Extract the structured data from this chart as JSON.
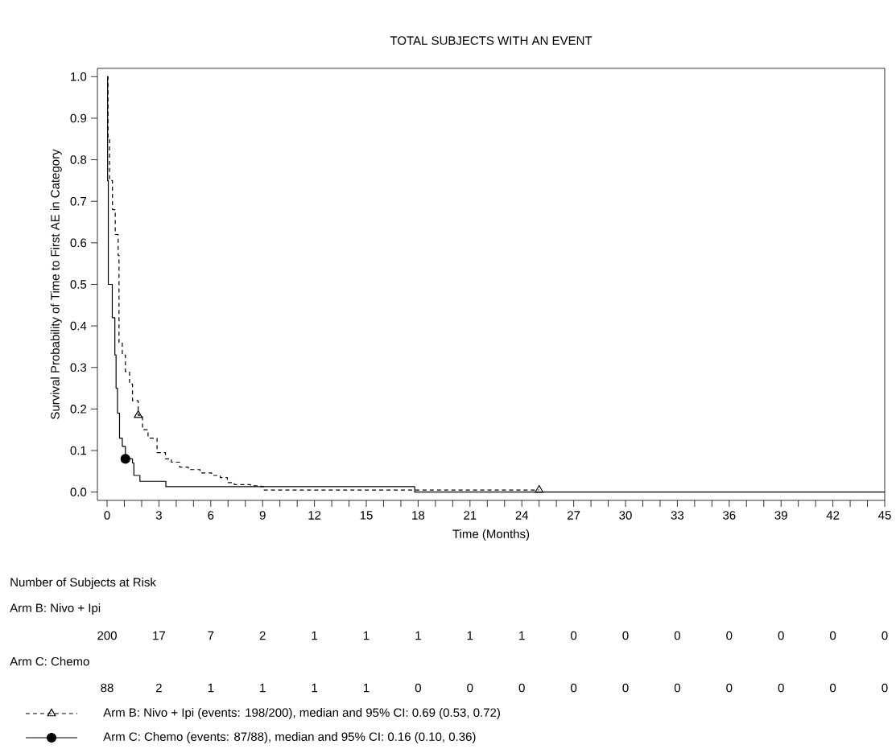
{
  "chart_data": {
    "type": "step",
    "title": "TOTAL SUBJECTS WITH AN EVENT",
    "xlabel": "Time (Months)",
    "ylabel": "Survival Probability of Time to First AE in Category",
    "xlim": [
      -0.56,
      45
    ],
    "ylim": [
      -0.02,
      1.02
    ],
    "xticks": [
      0,
      {
        "value": 1,
        "label": null
      },
      {
        "value": 2,
        "label": null
      },
      3,
      {
        "value": 4,
        "label": null
      },
      {
        "value": 5,
        "label": null
      },
      6,
      {
        "value": 7,
        "label": null
      },
      {
        "value": 8,
        "label": null
      },
      9,
      {
        "value": 10,
        "label": null
      },
      {
        "value": 11,
        "label": null
      },
      12,
      {
        "value": 13,
        "label": null
      },
      {
        "value": 14,
        "label": null
      },
      15,
      {
        "value": 16,
        "label": null
      },
      {
        "value": 17,
        "label": null
      },
      18,
      {
        "value": 19,
        "label": null
      },
      {
        "value": 20,
        "label": null
      },
      21,
      {
        "value": 22,
        "label": null
      },
      {
        "value": 23,
        "label": null
      },
      24,
      {
        "value": 25,
        "label": null
      },
      {
        "value": 26,
        "label": null
      },
      27,
      {
        "value": 28,
        "label": null
      },
      {
        "value": 29,
        "label": null
      },
      30,
      {
        "value": 31,
        "label": null
      },
      {
        "value": 32,
        "label": null
      },
      33,
      {
        "value": 34,
        "label": null
      },
      {
        "value": 35,
        "label": null
      },
      36,
      {
        "value": 37,
        "label": null
      },
      {
        "value": 38,
        "label": null
      },
      39,
      {
        "value": 40,
        "label": null
      },
      {
        "value": 41,
        "label": null
      },
      42,
      {
        "value": 43,
        "label": null
      },
      {
        "value": 44,
        "label": null
      },
      45
    ],
    "yticks": [
      {
        "value": 0,
        "label": "0.0"
      },
      {
        "value": 0.1,
        "label": "0.1"
      },
      {
        "value": 0.2,
        "label": "0.2"
      },
      {
        "value": 0.3,
        "label": "0.3"
      },
      {
        "value": 0.4,
        "label": "0.4"
      },
      {
        "value": 0.5,
        "label": "0.5"
      },
      {
        "value": 0.6,
        "label": "0.6"
      },
      {
        "value": 0.7,
        "label": "0.7"
      },
      {
        "value": 0.8,
        "label": "0.8"
      },
      {
        "value": 0.9,
        "label": "0.9"
      },
      {
        "value": 1,
        "label": "1.0"
      }
    ],
    "legend": "bottom",
    "series": [
      {
        "name": "Arm B: Nivo + Ipi (events: 198/200), median and 95% CI: 0.69 (0.53, 0.72)",
        "color": "#000000",
        "line_style": "dashed",
        "x": [
          0,
          0.05,
          0.14,
          0.31,
          0.47,
          0.64,
          0.69,
          0.88,
          1.06,
          1.3,
          1.47,
          1.8,
          2.05,
          2.37,
          2.89,
          3.38,
          3.72,
          4.2,
          4.7,
          5.38,
          6.05,
          6.55,
          6.96,
          7.36,
          8.3,
          8.9,
          9.06,
          25
        ],
        "values": [
          1.0,
          0.85,
          0.75,
          0.68,
          0.62,
          0.57,
          0.36,
          0.33,
          0.29,
          0.26,
          0.22,
          0.185,
          0.15,
          0.13,
          0.095,
          0.08,
          0.072,
          0.06,
          0.054,
          0.046,
          0.04,
          0.035,
          0.023,
          0.018,
          0.015,
          0.013,
          0.005,
          0.005
        ]
      },
      {
        "type": "scatter",
        "color": "#000000",
        "marker": "triangle",
        "x": [
          1.8,
          25
        ],
        "values": [
          0.185,
          0.005
        ]
      },
      {
        "name": "Arm C: Chemo (events: 87/88), median and 95% CI: 0.16 (0.10, 0.36)",
        "color": "#000000",
        "line_style": "solid",
        "x": [
          0,
          0.03,
          0.07,
          0.3,
          0.45,
          0.52,
          0.6,
          0.72,
          0.88,
          1.06,
          1.47,
          1.55,
          1.9,
          3.4,
          17.8,
          45
        ],
        "values": [
          1.0,
          0.75,
          0.5,
          0.42,
          0.33,
          0.25,
          0.19,
          0.13,
          0.11,
          0.08,
          0.07,
          0.04,
          0.026,
          0.013,
          0.0,
          0.0
        ]
      },
      {
        "type": "scatter",
        "color": "#000000",
        "marker": "circle",
        "x": [
          1.06
        ],
        "values": [
          0.08
        ]
      }
    ],
    "annotations": [
      "Number of Subjects at Risk",
      "Arm B: Nivo + Ipi",
      "200",
      "17",
      "7",
      "2",
      "1",
      "1",
      "1",
      "1",
      "1",
      "0",
      "0",
      "0",
      "0",
      "0",
      "0",
      "0",
      "Arm C: Chemo",
      "88",
      "2",
      "1",
      "1",
      "1",
      "1",
      "0",
      "0",
      "0",
      "0",
      "0",
      "0",
      "0",
      "0",
      "0",
      "0"
    ]
  }
}
